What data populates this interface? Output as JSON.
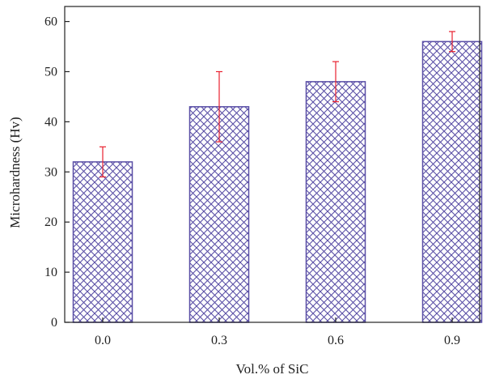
{
  "chart_data": {
    "type": "bar",
    "categories": [
      "0.0",
      "0.3",
      "0.6",
      "0.9"
    ],
    "series": [
      {
        "values": [
          32,
          43,
          48,
          56
        ],
        "error_low": [
          29,
          36,
          44,
          54
        ],
        "error_high": [
          35,
          50,
          52,
          58
        ]
      }
    ],
    "title": "",
    "xlabel": "Vol.% of SiC",
    "ylabel": "Microhardness (Hv)",
    "ylim": [
      0,
      63
    ],
    "yticks": [
      0,
      10,
      20,
      30,
      40,
      50,
      60
    ],
    "grid": false,
    "bar_fill": "crosshatch",
    "bar_color": "#5a4fa6",
    "error_bar_color": "#e8202e",
    "axis_color": "#222222"
  }
}
